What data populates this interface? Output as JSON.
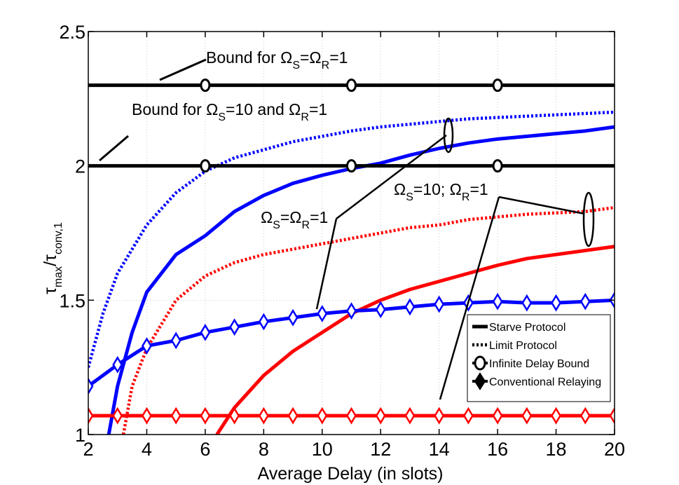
{
  "chart_data": {
    "type": "line",
    "title": "",
    "xlabel": "Average Delay (in slots)",
    "ylabel": {
      "main": "τ",
      "sub": "max",
      "slash": "/τ",
      "sub2": "conv,1"
    },
    "xlim": [
      2,
      20
    ],
    "ylim": [
      1,
      2.5
    ],
    "xticks": [
      2,
      4,
      6,
      8,
      10,
      12,
      14,
      16,
      18,
      20
    ],
    "yticks": [
      1,
      1.5,
      2,
      2.5
    ],
    "xtick_labels": [
      "2",
      "4",
      "6",
      "8",
      "10",
      "12",
      "14",
      "16",
      "18",
      "20"
    ],
    "ytick_labels": [
      "1",
      "1.5",
      "2",
      "2.5"
    ],
    "grid": true,
    "series": [
      {
        "name": "Starve Protocol, ΩS=ΩR=1",
        "color": "#0000ff",
        "style": "solid",
        "x": [
          2.7,
          3,
          3.5,
          4,
          5,
          6,
          7,
          8,
          9,
          10,
          11,
          12,
          13,
          14,
          15,
          16,
          17,
          18,
          19,
          20
        ],
        "y": [
          1.0,
          1.18,
          1.38,
          1.53,
          1.67,
          1.74,
          1.83,
          1.89,
          1.935,
          1.965,
          1.99,
          2.01,
          2.04,
          2.065,
          2.085,
          2.1,
          2.11,
          2.12,
          2.13,
          2.145
        ]
      },
      {
        "name": "Limit Protocol, ΩS=ΩR=1",
        "color": "#0000ff",
        "style": "dotted",
        "x": [
          2,
          2.5,
          3,
          4,
          5,
          6,
          7,
          8,
          9,
          10,
          11,
          12,
          13,
          14,
          15,
          16,
          17,
          18,
          19,
          20
        ],
        "y": [
          1.25,
          1.45,
          1.6,
          1.78,
          1.9,
          1.98,
          2.03,
          2.06,
          2.09,
          2.11,
          2.13,
          2.145,
          2.155,
          2.165,
          2.175,
          2.18,
          2.185,
          2.19,
          2.195,
          2.2
        ]
      },
      {
        "name": "Starve Protocol, ΩS=10; ΩR=1",
        "color": "#ff0000",
        "style": "solid",
        "x": [
          6.4,
          7,
          8,
          9,
          10,
          11,
          12,
          13,
          14,
          15,
          16,
          17,
          18,
          19,
          20
        ],
        "y": [
          1.0,
          1.1,
          1.22,
          1.31,
          1.38,
          1.45,
          1.5,
          1.54,
          1.57,
          1.6,
          1.63,
          1.655,
          1.67,
          1.685,
          1.7
        ]
      },
      {
        "name": "Limit Protocol, ΩS=10; ΩR=1",
        "color": "#ff0000",
        "style": "dotted",
        "x": [
          3.2,
          3.5,
          4,
          5,
          6,
          7,
          8,
          9,
          10,
          11,
          12,
          13,
          14,
          15,
          16,
          17,
          18,
          19,
          20
        ],
        "y": [
          1.0,
          1.18,
          1.32,
          1.5,
          1.59,
          1.64,
          1.67,
          1.69,
          1.71,
          1.73,
          1.75,
          1.77,
          1.78,
          1.8,
          1.81,
          1.82,
          1.825,
          1.83,
          1.845
        ]
      },
      {
        "name": "Conventional Relaying, ΩS=ΩR=1",
        "color": "#0000ff",
        "style": "solid",
        "marker": "diamond",
        "x": [
          2,
          3,
          4,
          5,
          6,
          7,
          8,
          9,
          10,
          11,
          12,
          13,
          14,
          15,
          16,
          17,
          18,
          19,
          20
        ],
        "y": [
          1.18,
          1.26,
          1.33,
          1.35,
          1.38,
          1.4,
          1.42,
          1.435,
          1.45,
          1.46,
          1.465,
          1.475,
          1.485,
          1.49,
          1.495,
          1.49,
          1.49,
          1.495,
          1.5
        ]
      },
      {
        "name": "Conventional Relaying, ΩS=10; ΩR=1",
        "color": "#ff0000",
        "style": "solid",
        "marker": "diamond",
        "x": [
          2,
          3,
          4,
          5,
          6,
          7,
          8,
          9,
          10,
          11,
          12,
          13,
          14,
          15,
          16,
          17,
          18,
          19,
          20
        ],
        "y": [
          1.07,
          1.07,
          1.07,
          1.07,
          1.07,
          1.07,
          1.07,
          1.07,
          1.07,
          1.07,
          1.07,
          1.07,
          1.07,
          1.07,
          1.07,
          1.07,
          1.07,
          1.07,
          1.07
        ]
      },
      {
        "name": "Infinite Delay Bound, ΩS=ΩR=1",
        "color": "#000000",
        "style": "solid",
        "marker": "circle",
        "x": [
          2,
          20
        ],
        "y": [
          2.3,
          2.3
        ],
        "marker_x": [
          6,
          11,
          16
        ]
      },
      {
        "name": "Infinite Delay Bound, ΩS=10 and ΩR=1",
        "color": "#000000",
        "style": "solid",
        "marker": "circle",
        "x": [
          2,
          20
        ],
        "y": [
          2.0,
          2.0
        ],
        "marker_x": [
          6,
          11,
          16
        ]
      }
    ],
    "legend": {
      "placement": "bottom-right",
      "entries": [
        "Starve Protocol",
        "Limit Protocol",
        "Infinite Delay Bound",
        "Conventional Relaying"
      ]
    },
    "annotations": {
      "bound1": {
        "a": "Bound for Ω",
        "b": "S",
        "c": "=Ω",
        "d": "R",
        "e": "=1"
      },
      "bound2": {
        "a": "Bound for Ω",
        "b": "S",
        "c": "=10 and Ω",
        "d": "R",
        "e": "=1"
      },
      "group1": {
        "a": "Ω",
        "b": "S",
        "c": "=Ω",
        "d": "R",
        "e": "=1"
      },
      "group2": {
        "a": "Ω",
        "b": "S",
        "c": "=10; Ω",
        "d": "R",
        "e": "=1"
      }
    }
  }
}
